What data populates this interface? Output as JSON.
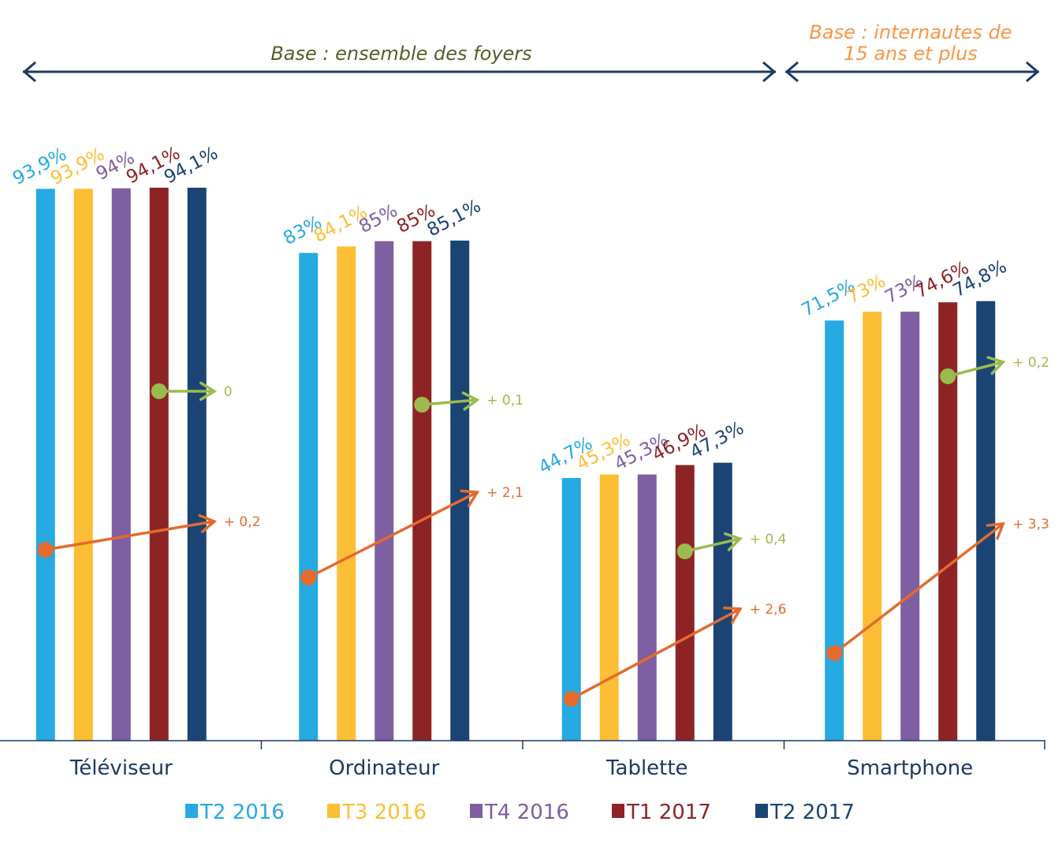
{
  "chart_data": {
    "type": "bar",
    "title": "",
    "xlabel": "",
    "ylabel": "",
    "ylim": [
      0,
      100
    ],
    "grid": false,
    "legend_position": "bottom",
    "categories": [
      "Téléviseur",
      "Ordinateur",
      "Tablette",
      "Smartphone"
    ],
    "series": [
      {
        "name": "T2 2016",
        "color": "#27a9e1",
        "values": [
          93.9,
          83,
          44.7,
          71.5
        ],
        "labels": [
          "93,9%",
          "83%",
          "44,7%",
          "71,5%"
        ]
      },
      {
        "name": "T3 2016",
        "color": "#fbbe34",
        "values": [
          93.9,
          84.1,
          45.3,
          73
        ],
        "labels": [
          "93,9%",
          "84,1%",
          "45,3%",
          "73%"
        ]
      },
      {
        "name": "T4 2016",
        "color": "#7e5fa1",
        "values": [
          94,
          85,
          45.3,
          73
        ],
        "labels": [
          "94%",
          "85%",
          "45,3%",
          "73%"
        ]
      },
      {
        "name": "T1 2017",
        "color": "#8e2326",
        "values": [
          94.1,
          85,
          46.9,
          74.6
        ],
        "labels": [
          "94,1%",
          "85%",
          "46,9%",
          "74,6%"
        ]
      },
      {
        "name": "T2 2017",
        "color": "#1b4373",
        "values": [
          94.1,
          85.1,
          47.3,
          74.8
        ],
        "labels": [
          "94,1%",
          "85,1%",
          "47,3%",
          "74,8%"
        ]
      }
    ],
    "annotations": {
      "yearly_change": {
        "color": "#e46a2e",
        "labels": [
          "+ 0,2",
          "+ 2,1",
          "+ 2,6",
          "+ 3,3"
        ],
        "values": [
          0.2,
          2.1,
          2.6,
          3.3
        ]
      },
      "quarterly_change": {
        "color": "#9bbb4f",
        "labels": [
          "0",
          "+ 0,1",
          "+ 0,4",
          "+ 0,2"
        ],
        "values": [
          0,
          0.1,
          0.4,
          0.2
        ]
      }
    },
    "bases": [
      {
        "text": "Base : ensemble des foyers",
        "color": "#4f6228",
        "span": [
          "Téléviseur",
          "Tablette"
        ]
      },
      {
        "text_lines": [
          "Base : internautes de",
          "15 ans et plus"
        ],
        "color": "#f79646",
        "span": [
          "Smartphone",
          "Smartphone"
        ]
      }
    ]
  },
  "colors": {
    "axis": "#1b3a63",
    "base_arrow": "#1b3a63"
  }
}
